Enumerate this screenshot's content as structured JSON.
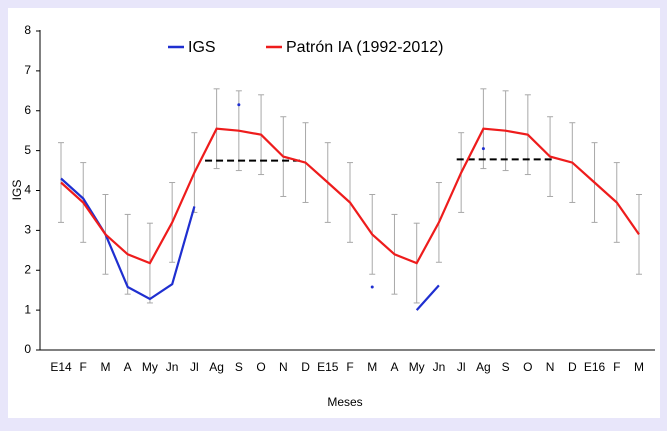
{
  "chart_data": {
    "type": "line",
    "y_label": "IGS",
    "x_label": "Meses",
    "categories": [
      "E14",
      "F",
      "M",
      "A",
      "My",
      "Jn",
      "Jl",
      "Ag",
      "S",
      "O",
      "N",
      "D",
      "E15",
      "F",
      "M",
      "A",
      "My",
      "Jn",
      "Jl",
      "Ag",
      "S",
      "O",
      "N",
      "D",
      "E16",
      "F",
      "M"
    ],
    "series": [
      {
        "name": "IGS",
        "color": "#1f2fd0",
        "values": [
          4.3,
          3.8,
          2.9,
          1.58,
          1.28,
          1.65,
          3.6,
          null,
          6.15,
          null,
          null,
          null,
          null,
          null,
          1.58,
          null,
          1.0,
          1.62,
          null,
          5.05,
          null,
          null,
          null,
          null,
          null,
          null,
          null
        ]
      },
      {
        "name": "Patrón IA (1992-2012)",
        "color": "#ee1c1c",
        "values": [
          4.2,
          3.7,
          2.9,
          2.4,
          2.18,
          3.2,
          4.45,
          5.55,
          5.5,
          5.4,
          4.85,
          4.7,
          4.2,
          3.7,
          2.9,
          2.4,
          2.18,
          3.2,
          4.45,
          5.55,
          5.5,
          5.4,
          4.85,
          4.7,
          4.2,
          3.7,
          2.9
        ],
        "errors": [
          1,
          1,
          1,
          1,
          1,
          1,
          1,
          1,
          1,
          1,
          1,
          1,
          1,
          1,
          1,
          1,
          1,
          1,
          1,
          1,
          1,
          1,
          1,
          1,
          1,
          1,
          1
        ]
      }
    ],
    "reference_lines": [
      {
        "value": 4.75,
        "start": 6.48,
        "end": 10.75
      },
      {
        "value": 4.78,
        "start": 17.8,
        "end": 22.1
      }
    ],
    "ylim": [
      0,
      8
    ],
    "yticks": [
      0,
      1,
      2,
      3,
      4,
      5,
      6,
      7,
      8
    ]
  }
}
